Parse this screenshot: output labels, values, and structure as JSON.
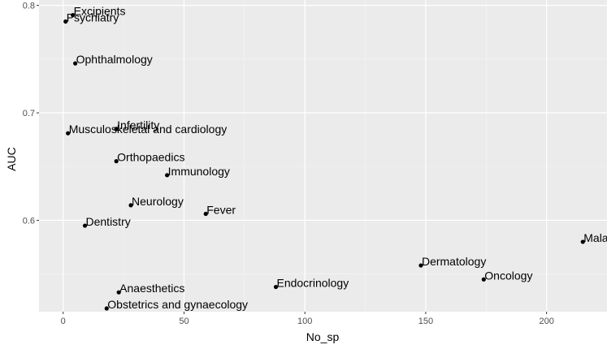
{
  "chart_data": {
    "type": "scatter",
    "title": "",
    "xlabel": "No_sp",
    "ylabel": "AUC",
    "xlim": [
      -10,
      225
    ],
    "ylim": [
      0.515,
      0.805
    ],
    "x_ticks": [
      0,
      50,
      100,
      150,
      200
    ],
    "x_tick_labels": [
      "0",
      "50",
      "100",
      "150",
      "200"
    ],
    "y_ticks": [
      0.6,
      0.7,
      0.8
    ],
    "y_tick_labels": [
      "0.6",
      "0.7",
      "0.8"
    ],
    "grid": true,
    "legend": "none",
    "colors": {
      "panel_background": "#ebebeb",
      "grid_major": "#ffffff",
      "grid_minor": "#f5f5f5",
      "point": "#000000"
    },
    "points": [
      {
        "label": "Excipients",
        "x": 4,
        "y": 0.791
      },
      {
        "label": "Psychiatry",
        "x": 1,
        "y": 0.785
      },
      {
        "label": "Ophthalmology",
        "x": 5,
        "y": 0.746
      },
      {
        "label": "Infertility",
        "x": 22,
        "y": 0.685
      },
      {
        "label": "Musculoskeletal and cardiology",
        "x": 2,
        "y": 0.681
      },
      {
        "label": "Orthopaedics",
        "x": 22,
        "y": 0.655
      },
      {
        "label": "Immunology",
        "x": 43,
        "y": 0.642
      },
      {
        "label": "Neurology",
        "x": 28,
        "y": 0.614
      },
      {
        "label": "Fever",
        "x": 59,
        "y": 0.606
      },
      {
        "label": "Dentistry",
        "x": 9,
        "y": 0.595
      },
      {
        "label": "Malaria",
        "x": 215,
        "y": 0.58
      },
      {
        "label": "Dermatology",
        "x": 148,
        "y": 0.558
      },
      {
        "label": "Oncology",
        "x": 174,
        "y": 0.545
      },
      {
        "label": "Endocrinology",
        "x": 88,
        "y": 0.538
      },
      {
        "label": "Anaesthetics",
        "x": 23,
        "y": 0.533
      },
      {
        "label": "Obstetrics and gynaecology",
        "x": 18,
        "y": 0.518
      }
    ]
  }
}
